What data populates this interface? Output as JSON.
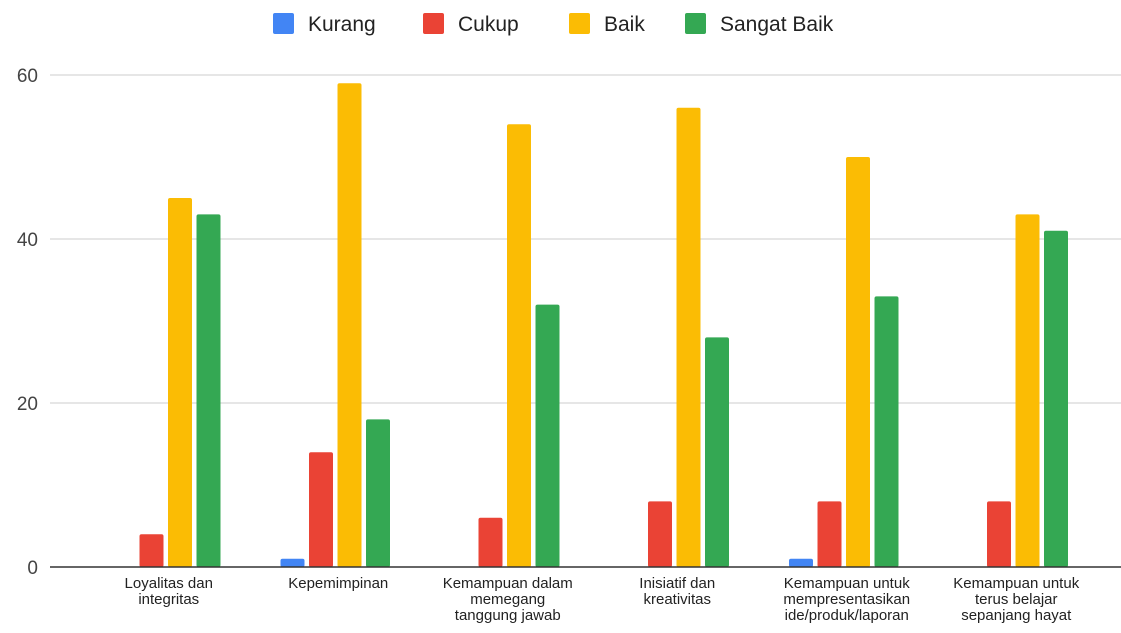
{
  "chart_data": {
    "type": "bar",
    "title": "",
    "xlabel": "",
    "ylabel": "",
    "ylim": [
      0,
      60
    ],
    "yticks": [
      0,
      20,
      40,
      60
    ],
    "grid": true,
    "legend_position": "top-center",
    "categories": [
      [
        "Loyalitas dan",
        "integritas"
      ],
      [
        "Kepemimpinan"
      ],
      [
        "Kemampuan dalam",
        "memegang",
        "tanggung jawab"
      ],
      [
        "Inisiatif dan",
        "kreativitas"
      ],
      [
        "Kemampuan untuk",
        "mempresentasikan",
        "ide/produk/laporan"
      ],
      [
        "Kemampuan untuk",
        "terus belajar",
        "sepanjang hayat"
      ]
    ],
    "series": [
      {
        "name": "Kurang",
        "color": "#4285F4",
        "values": [
          0,
          1,
          0,
          0,
          1,
          0
        ]
      },
      {
        "name": "Cukup",
        "color": "#EA4335",
        "values": [
          4,
          14,
          6,
          8,
          8,
          8
        ]
      },
      {
        "name": "Baik",
        "color": "#FBBC04",
        "values": [
          45,
          59,
          54,
          56,
          50,
          43
        ]
      },
      {
        "name": "Sangat Baik",
        "color": "#34A853",
        "values": [
          43,
          18,
          32,
          28,
          33,
          41
        ]
      }
    ]
  }
}
